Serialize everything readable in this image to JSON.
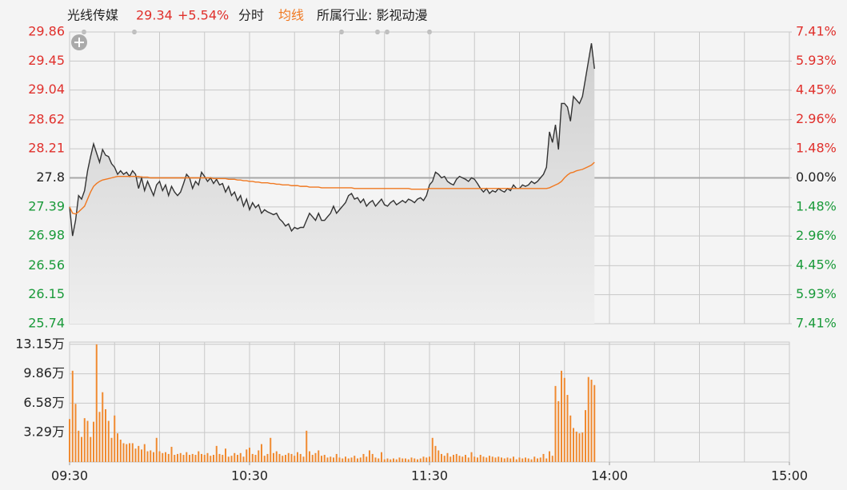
{
  "chart_data": [
    {
      "type": "line",
      "title": "光线传媒",
      "price_label": "29.34",
      "change_label": "+5.54%",
      "industry": "所属行业: 影视动漫",
      "x": [
        0,
        1,
        2,
        3,
        4,
        5,
        6,
        7,
        8,
        9,
        10,
        11,
        12,
        13,
        14,
        15,
        16,
        17,
        18,
        19,
        20,
        21,
        22,
        23,
        24,
        25,
        26,
        27,
        28,
        29,
        30,
        31,
        32,
        33,
        34,
        35,
        36,
        37,
        38,
        39,
        40,
        41,
        42,
        43,
        44,
        45,
        46,
        47,
        48,
        49,
        50,
        51,
        52,
        53,
        54,
        55,
        56,
        57,
        58,
        59,
        60,
        61,
        62,
        63,
        64,
        65,
        66,
        67,
        68,
        69,
        70,
        71,
        72,
        73,
        74,
        75,
        76,
        77,
        78,
        79,
        80,
        81,
        82,
        83,
        84,
        85,
        86,
        87,
        88,
        89,
        90,
        91,
        92,
        93,
        94,
        95,
        96,
        97,
        98,
        99,
        100,
        101,
        102,
        103,
        104,
        105,
        106,
        107,
        108,
        109,
        110,
        111,
        112,
        113,
        114,
        115,
        116,
        117,
        118,
        119,
        120,
        121,
        122,
        123,
        124,
        125,
        126,
        127,
        128,
        129,
        130,
        131,
        132,
        133,
        134,
        135,
        136,
        137,
        138,
        139,
        140,
        141,
        142,
        143,
        144,
        145,
        146,
        147,
        148,
        149,
        150,
        151,
        152,
        153,
        154,
        155,
        156,
        157,
        158,
        159,
        160,
        161,
        162,
        163,
        164,
        165,
        166,
        167,
        168,
        169,
        170,
        171,
        172,
        173,
        174,
        175
      ],
      "xlim": [
        0,
        240
      ],
      "xticks": [
        {
          "value": 0,
          "label": "09:30"
        },
        {
          "value": 60,
          "label": "10:30"
        },
        {
          "value": 120,
          "label": "11:30"
        },
        {
          "value": 180,
          "label": "14:00"
        },
        {
          "value": 240,
          "label": "15:00"
        }
      ],
      "ylim": [
        25.74,
        29.86
      ],
      "yticks": [
        25.74,
        26.15,
        26.56,
        26.98,
        27.39,
        27.8,
        28.21,
        28.62,
        29.04,
        29.45,
        29.86
      ],
      "y2lim": [
        -7.41,
        7.41
      ],
      "y2ticks": [
        {
          "value": -7.41,
          "label": "7.41%"
        },
        {
          "value": -5.93,
          "label": "5.93%"
        },
        {
          "value": -4.45,
          "label": "4.45%"
        },
        {
          "value": -2.96,
          "label": "2.96%"
        },
        {
          "value": -1.48,
          "label": "1.48%"
        },
        {
          "value": 0,
          "label": "0.00%"
        },
        {
          "value": 1.48,
          "label": "1.48%"
        },
        {
          "value": 2.96,
          "label": "2.96%"
        },
        {
          "value": 4.45,
          "label": "4.45%"
        },
        {
          "value": 5.93,
          "label": "5.93%"
        },
        {
          "value": 7.41,
          "label": "7.41%"
        }
      ],
      "up_color": "#e0302c",
      "down_color": "#1a9a3a",
      "flat_color": "#222222",
      "grid": true,
      "series": [
        {
          "name": "分时",
          "color": "#333333",
          "fill": true,
          "values": [
            27.39,
            26.98,
            27.2,
            27.55,
            27.5,
            27.62,
            27.9,
            28.1,
            28.28,
            28.15,
            28.02,
            28.2,
            28.12,
            28.1,
            28.0,
            27.95,
            27.85,
            27.9,
            27.85,
            27.88,
            27.82,
            27.9,
            27.85,
            27.65,
            27.8,
            27.62,
            27.75,
            27.65,
            27.55,
            27.7,
            27.75,
            27.62,
            27.7,
            27.55,
            27.68,
            27.6,
            27.55,
            27.6,
            27.72,
            27.85,
            27.8,
            27.65,
            27.75,
            27.7,
            27.88,
            27.82,
            27.75,
            27.8,
            27.72,
            27.78,
            27.7,
            27.72,
            27.6,
            27.68,
            27.55,
            27.6,
            27.48,
            27.55,
            27.4,
            27.5,
            27.35,
            27.45,
            27.38,
            27.42,
            27.3,
            27.35,
            27.32,
            27.3,
            27.28,
            27.3,
            27.22,
            27.18,
            27.12,
            27.15,
            27.05,
            27.1,
            27.08,
            27.1,
            27.1,
            27.2,
            27.3,
            27.25,
            27.2,
            27.3,
            27.2,
            27.2,
            27.25,
            27.3,
            27.4,
            27.3,
            27.35,
            27.4,
            27.45,
            27.55,
            27.58,
            27.5,
            27.52,
            27.45,
            27.5,
            27.4,
            27.45,
            27.48,
            27.4,
            27.45,
            27.5,
            27.42,
            27.4,
            27.45,
            27.48,
            27.42,
            27.45,
            27.48,
            27.45,
            27.5,
            27.48,
            27.45,
            27.5,
            27.52,
            27.48,
            27.55,
            27.7,
            27.75,
            27.88,
            27.85,
            27.8,
            27.82,
            27.75,
            27.72,
            27.7,
            27.78,
            27.82,
            27.8,
            27.78,
            27.75,
            27.8,
            27.78,
            27.72,
            27.65,
            27.6,
            27.65,
            27.58,
            27.62,
            27.6,
            27.65,
            27.62,
            27.6,
            27.65,
            27.62,
            27.7,
            27.65,
            27.65,
            27.7,
            27.68,
            27.7,
            27.75,
            27.72,
            27.75,
            27.8,
            27.85,
            27.95,
            28.45,
            28.3,
            28.55,
            28.2,
            28.85,
            28.85,
            28.8,
            28.6,
            28.95,
            28.9,
            28.85,
            28.95,
            29.2,
            29.45,
            29.7,
            29.34
          ]
        },
        {
          "name": "均线",
          "color": "#f07820",
          "fill": false,
          "values": [
            27.39,
            27.3,
            27.29,
            27.32,
            27.36,
            27.4,
            27.5,
            27.6,
            27.68,
            27.72,
            27.75,
            27.77,
            27.78,
            27.79,
            27.8,
            27.81,
            27.82,
            27.82,
            27.82,
            27.82,
            27.82,
            27.82,
            27.82,
            27.82,
            27.81,
            27.81,
            27.81,
            27.8,
            27.8,
            27.8,
            27.8,
            27.8,
            27.8,
            27.8,
            27.8,
            27.8,
            27.8,
            27.8,
            27.8,
            27.8,
            27.8,
            27.8,
            27.8,
            27.8,
            27.8,
            27.8,
            27.8,
            27.8,
            27.79,
            27.79,
            27.79,
            27.79,
            27.79,
            27.78,
            27.78,
            27.78,
            27.77,
            27.77,
            27.76,
            27.76,
            27.75,
            27.75,
            27.74,
            27.74,
            27.73,
            27.73,
            27.73,
            27.72,
            27.72,
            27.71,
            27.71,
            27.7,
            27.7,
            27.7,
            27.69,
            27.69,
            27.69,
            27.68,
            27.68,
            27.68,
            27.67,
            27.67,
            27.67,
            27.67,
            27.66,
            27.66,
            27.66,
            27.66,
            27.66,
            27.66,
            27.66,
            27.66,
            27.66,
            27.66,
            27.66,
            27.65,
            27.65,
            27.65,
            27.65,
            27.65,
            27.65,
            27.65,
            27.65,
            27.65,
            27.65,
            27.65,
            27.65,
            27.65,
            27.65,
            27.65,
            27.65,
            27.65,
            27.65,
            27.65,
            27.64,
            27.64,
            27.64,
            27.64,
            27.64,
            27.64,
            27.65,
            27.65,
            27.65,
            27.65,
            27.65,
            27.65,
            27.65,
            27.65,
            27.65,
            27.65,
            27.65,
            27.65,
            27.65,
            27.65,
            27.65,
            27.65,
            27.65,
            27.65,
            27.65,
            27.65,
            27.65,
            27.65,
            27.65,
            27.65,
            27.65,
            27.65,
            27.65,
            27.65,
            27.65,
            27.65,
            27.65,
            27.65,
            27.65,
            27.65,
            27.65,
            27.65,
            27.65,
            27.65,
            27.65,
            27.65,
            27.66,
            27.68,
            27.7,
            27.72,
            27.75,
            27.8,
            27.84,
            27.87,
            27.88,
            27.9,
            27.91,
            27.92,
            27.94,
            27.96,
            27.98,
            28.02
          ]
        }
      ]
    },
    {
      "type": "bar",
      "x": [
        0,
        1,
        2,
        3,
        4,
        5,
        6,
        7,
        8,
        9,
        10,
        11,
        12,
        13,
        14,
        15,
        16,
        17,
        18,
        19,
        20,
        21,
        22,
        23,
        24,
        25,
        26,
        27,
        28,
        29,
        30,
        31,
        32,
        33,
        34,
        35,
        36,
        37,
        38,
        39,
        40,
        41,
        42,
        43,
        44,
        45,
        46,
        47,
        48,
        49,
        50,
        51,
        52,
        53,
        54,
        55,
        56,
        57,
        58,
        59,
        60,
        61,
        62,
        63,
        64,
        65,
        66,
        67,
        68,
        69,
        70,
        71,
        72,
        73,
        74,
        75,
        76,
        77,
        78,
        79,
        80,
        81,
        82,
        83,
        84,
        85,
        86,
        87,
        88,
        89,
        90,
        91,
        92,
        93,
        94,
        95,
        96,
        97,
        98,
        99,
        100,
        101,
        102,
        103,
        104,
        105,
        106,
        107,
        108,
        109,
        110,
        111,
        112,
        113,
        114,
        115,
        116,
        117,
        118,
        119,
        120,
        121,
        122,
        123,
        124,
        125,
        126,
        127,
        128,
        129,
        130,
        131,
        132,
        133,
        134,
        135,
        136,
        137,
        138,
        139,
        140,
        141,
        142,
        143,
        144,
        145,
        146,
        147,
        148,
        149,
        150,
        151,
        152,
        153,
        154,
        155,
        156,
        157,
        158,
        159,
        160,
        161,
        162,
        163,
        164,
        165,
        166,
        167,
        168,
        169,
        170,
        171,
        172,
        173,
        174,
        175
      ],
      "xlim": [
        0,
        240
      ],
      "ylim": [
        0,
        13.4
      ],
      "yticks": [
        {
          "value": 3.29,
          "label": "3.29万"
        },
        {
          "value": 6.58,
          "label": "6.58万"
        },
        {
          "value": 9.86,
          "label": "9.86万"
        },
        {
          "value": 13.15,
          "label": "13.15万"
        }
      ],
      "color": "#f08a30",
      "values": [
        4.8,
        10.2,
        6.5,
        3.5,
        2.8,
        4.9,
        4.6,
        2.8,
        4.5,
        13.15,
        5.6,
        7.8,
        5.9,
        4.6,
        2.7,
        5.2,
        3.2,
        2.5,
        2.1,
        2.0,
        2.1,
        2.1,
        1.5,
        1.8,
        1.4,
        2.0,
        1.2,
        1.3,
        1.1,
        2.7,
        1.2,
        1.0,
        1.1,
        0.9,
        1.7,
        0.8,
        0.9,
        1.0,
        0.8,
        1.1,
        0.8,
        0.9,
        0.8,
        1.2,
        0.9,
        0.8,
        1.0,
        0.7,
        0.8,
        1.8,
        0.9,
        0.8,
        1.5,
        0.6,
        0.7,
        1.0,
        0.8,
        1.0,
        0.6,
        1.4,
        1.6,
        0.9,
        0.8,
        1.3,
        2.0,
        0.7,
        0.9,
        2.7,
        1.0,
        1.2,
        0.9,
        0.7,
        0.8,
        1.0,
        0.9,
        0.7,
        1.1,
        0.9,
        0.6,
        3.5,
        1.2,
        0.8,
        1.0,
        1.3,
        0.7,
        0.8,
        0.5,
        0.6,
        0.5,
        0.9,
        0.5,
        0.4,
        0.6,
        0.4,
        0.5,
        0.7,
        0.4,
        0.5,
        0.9,
        0.6,
        1.3,
        0.9,
        0.5,
        0.4,
        1.1,
        0.3,
        0.4,
        0.3,
        0.4,
        0.3,
        0.5,
        0.4,
        0.4,
        0.3,
        0.5,
        0.4,
        0.3,
        0.4,
        0.6,
        0.5,
        0.6,
        2.7,
        1.8,
        1.3,
        0.9,
        0.7,
        1.0,
        0.6,
        0.8,
        0.9,
        0.7,
        0.6,
        0.8,
        0.5,
        1.1,
        0.6,
        0.5,
        0.8,
        0.6,
        0.5,
        0.7,
        0.6,
        0.5,
        0.6,
        0.5,
        0.4,
        0.5,
        0.4,
        0.6,
        0.3,
        0.5,
        0.4,
        0.5,
        0.4,
        0.3,
        0.6,
        0.4,
        0.5,
        0.9,
        0.4,
        1.2,
        0.7,
        8.5,
        6.8,
        10.2,
        9.4,
        7.5,
        5.2,
        3.8,
        3.4,
        3.2,
        3.3,
        5.8,
        9.5,
        9.2,
        8.6
      ]
    }
  ]
}
